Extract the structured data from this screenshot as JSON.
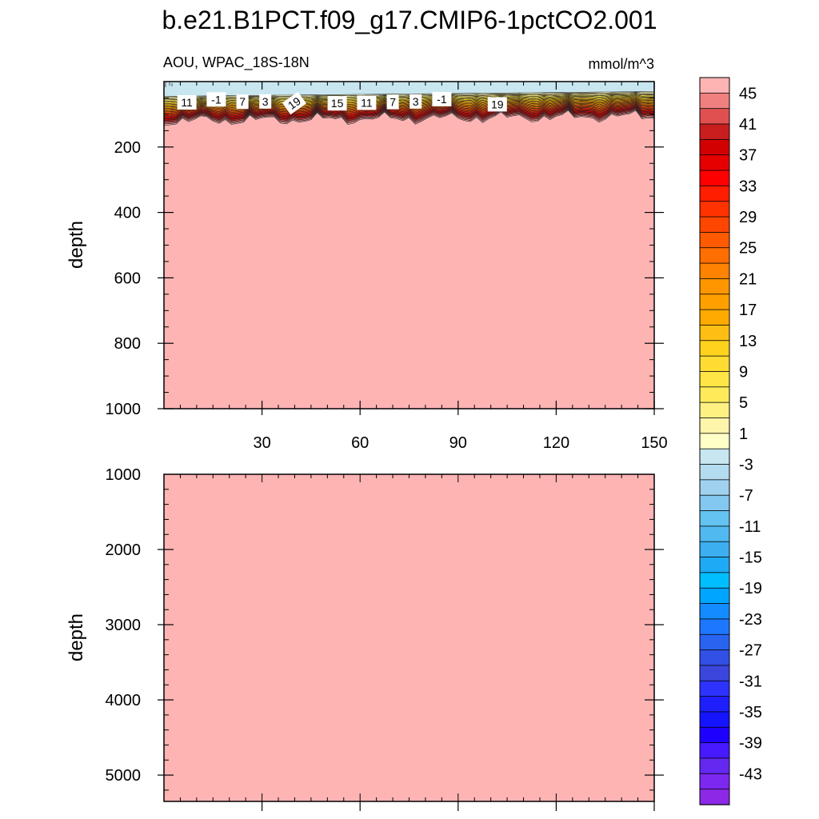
{
  "title": "b.e21.B1PCT.f09_g17.CMIP6-1pctCO2.001",
  "subtitle_left": "AOU, WPAC_18S-18N",
  "subtitle_right": "mmol/m^3",
  "chart_data": [
    {
      "type": "contour",
      "panel": "upper",
      "variable": "AOU",
      "region": "WPAC_18S-18N",
      "units": "mmol/m^3",
      "ylabel": "depth",
      "xlabel": "",
      "xlim": [
        0,
        150
      ],
      "ylim": [
        1000,
        0
      ],
      "xticks": [
        30,
        60,
        90,
        120,
        150
      ],
      "yticks": [
        200,
        400,
        600,
        800,
        1000
      ],
      "contour_labels": [
        "11",
        "-1",
        "7",
        "3",
        "19",
        "15",
        "11",
        "7",
        "3",
        "-1",
        "19"
      ],
      "field_summary": {
        "surface_layer_value_range": [
          -3,
          1
        ],
        "thermocline_depth_range": [
          50,
          125
        ],
        "deep_value": 45
      }
    },
    {
      "type": "contour",
      "panel": "lower",
      "variable": "AOU",
      "units": "mmol/m^3",
      "ylabel": "depth",
      "xlabel": "",
      "xlim": [
        0,
        150
      ],
      "ylim": [
        5350,
        1000
      ],
      "yticks": [
        1000,
        2000,
        3000,
        4000,
        5000
      ],
      "field_summary": {
        "deep_value": 45
      }
    }
  ],
  "colorbar": {
    "colors": [
      "#FFB4B4",
      "#F08080",
      "#E15050",
      "#C81E1E",
      "#D20000",
      "#E60000",
      "#FF0000",
      "#FF1E00",
      "#FF3200",
      "#FF4600",
      "#FF5A00",
      "#FF6E00",
      "#FF8200",
      "#FF9600",
      "#FFA000",
      "#FFAA00",
      "#FFBE14",
      "#FFD21E",
      "#FFDC32",
      "#FFE646",
      "#FFEB5A",
      "#FFF082",
      "#FFF5AA",
      "#FFFFC8",
      "#C8E6F0",
      "#B4DCF0",
      "#A0D2F0",
      "#82C8F0",
      "#64C3F0",
      "#50B9F0",
      "#3CAFF0",
      "#1EAAF5",
      "#00BEFF",
      "#00A5FF",
      "#148CFF",
      "#1E78FF",
      "#2864F0",
      "#3250E6",
      "#3C46DC",
      "#2D32FF",
      "#1E1EFF",
      "#1414FF",
      "#1E00FF",
      "#4619FF",
      "#6428F0",
      "#7D28F0",
      "#8C28E6"
    ],
    "tick_labels": [
      "45",
      "41",
      "37",
      "33",
      "29",
      "25",
      "21",
      "17",
      "13",
      "9",
      "5",
      "1",
      "-3",
      "-7",
      "-11",
      "-15",
      "-19",
      "-23",
      "-27",
      "-31",
      "-35",
      "-39",
      "-43"
    ]
  }
}
